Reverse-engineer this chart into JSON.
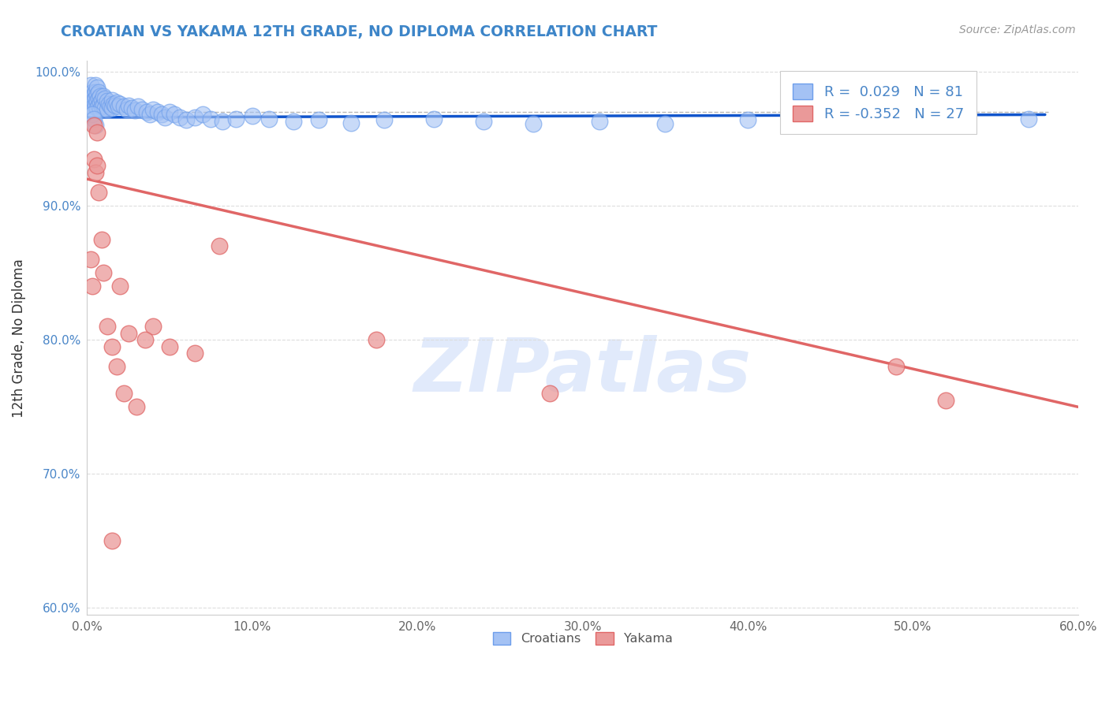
{
  "title": "CROATIAN VS YAKAMA 12TH GRADE, NO DIPLOMA CORRELATION CHART",
  "source_text": "Source: ZipAtlas.com",
  "ylabel": "12th Grade, No Diploma",
  "xlim": [
    0.0,
    0.6
  ],
  "ylim": [
    0.595,
    1.008
  ],
  "xticks": [
    0.0,
    0.1,
    0.2,
    0.3,
    0.4,
    0.5,
    0.6
  ],
  "xticklabels": [
    "0.0%",
    "10.0%",
    "20.0%",
    "30.0%",
    "40.0%",
    "50.0%",
    "60.0%"
  ],
  "yticks": [
    0.6,
    0.7,
    0.8,
    0.9,
    1.0
  ],
  "yticklabels": [
    "60.0%",
    "70.0%",
    "80.0%",
    "90.0%",
    "100.0%"
  ],
  "croatian_color": "#a4c2f4",
  "croatian_edge_color": "#6d9eeb",
  "yakama_color": "#ea9999",
  "yakama_edge_color": "#e06666",
  "croatian_line_color": "#1155cc",
  "yakama_line_color": "#e06666",
  "dashed_line_color": "#b7b7b7",
  "axis_color": "#cccccc",
  "grid_color": "#dddddd",
  "tick_color": "#4a86c8",
  "title_color": "#3d85c8",
  "source_color": "#999999",
  "ylabel_color": "#333333",
  "r_croatian": 0.029,
  "n_croatian": 81,
  "r_yakama": -0.352,
  "n_yakama": 27,
  "legend_label1": "Croatians",
  "legend_label2": "Yakama",
  "croatian_x": [
    0.001,
    0.002,
    0.002,
    0.003,
    0.003,
    0.003,
    0.004,
    0.004,
    0.004,
    0.004,
    0.005,
    0.005,
    0.005,
    0.005,
    0.006,
    0.006,
    0.006,
    0.006,
    0.007,
    0.007,
    0.007,
    0.008,
    0.008,
    0.008,
    0.009,
    0.009,
    0.01,
    0.01,
    0.011,
    0.011,
    0.012,
    0.012,
    0.013,
    0.014,
    0.015,
    0.015,
    0.016,
    0.017,
    0.018,
    0.019,
    0.02,
    0.022,
    0.024,
    0.025,
    0.027,
    0.029,
    0.031,
    0.033,
    0.036,
    0.038,
    0.04,
    0.043,
    0.045,
    0.047,
    0.05,
    0.053,
    0.056,
    0.06,
    0.065,
    0.07,
    0.075,
    0.082,
    0.09,
    0.1,
    0.11,
    0.125,
    0.14,
    0.16,
    0.18,
    0.21,
    0.24,
    0.27,
    0.31,
    0.35,
    0.4,
    0.45,
    0.51,
    0.57,
    0.003,
    0.004,
    0.005
  ],
  "croatian_y": [
    0.98,
    0.99,
    0.975,
    0.985,
    0.98,
    0.978,
    0.983,
    0.979,
    0.975,
    0.972,
    0.99,
    0.985,
    0.98,
    0.975,
    0.988,
    0.983,
    0.978,
    0.973,
    0.985,
    0.98,
    0.975,
    0.982,
    0.977,
    0.972,
    0.979,
    0.974,
    0.982,
    0.975,
    0.98,
    0.973,
    0.978,
    0.972,
    0.976,
    0.974,
    0.979,
    0.973,
    0.976,
    0.975,
    0.977,
    0.974,
    0.976,
    0.974,
    0.972,
    0.975,
    0.973,
    0.971,
    0.974,
    0.972,
    0.97,
    0.968,
    0.972,
    0.97,
    0.968,
    0.966,
    0.97,
    0.968,
    0.966,
    0.964,
    0.966,
    0.968,
    0.965,
    0.963,
    0.965,
    0.967,
    0.965,
    0.963,
    0.964,
    0.962,
    0.964,
    0.965,
    0.963,
    0.961,
    0.963,
    0.961,
    0.964,
    0.962,
    0.963,
    0.965,
    0.968,
    0.965,
    0.96
  ],
  "yakama_x": [
    0.002,
    0.003,
    0.004,
    0.004,
    0.005,
    0.006,
    0.006,
    0.007,
    0.009,
    0.01,
    0.012,
    0.015,
    0.018,
    0.022,
    0.03,
    0.04,
    0.05,
    0.065,
    0.08,
    0.02,
    0.025,
    0.035,
    0.175,
    0.28,
    0.49,
    0.52,
    0.015
  ],
  "yakama_y": [
    0.86,
    0.84,
    0.96,
    0.935,
    0.925,
    0.955,
    0.93,
    0.91,
    0.875,
    0.85,
    0.81,
    0.795,
    0.78,
    0.76,
    0.75,
    0.81,
    0.795,
    0.79,
    0.87,
    0.84,
    0.805,
    0.8,
    0.8,
    0.76,
    0.78,
    0.755,
    0.65
  ],
  "dashed_line_y": 0.97,
  "blue_trend_x0": 0.0,
  "blue_trend_x1": 0.58,
  "blue_trend_y0": 0.966,
  "blue_trend_y1": 0.968,
  "pink_trend_x0": 0.0,
  "pink_trend_x1": 0.6,
  "pink_trend_y0": 0.92,
  "pink_trend_y1": 0.75,
  "watermark_text": "ZIPatlas",
  "watermark_color": "#c9daf8",
  "bg_color": "#ffffff"
}
